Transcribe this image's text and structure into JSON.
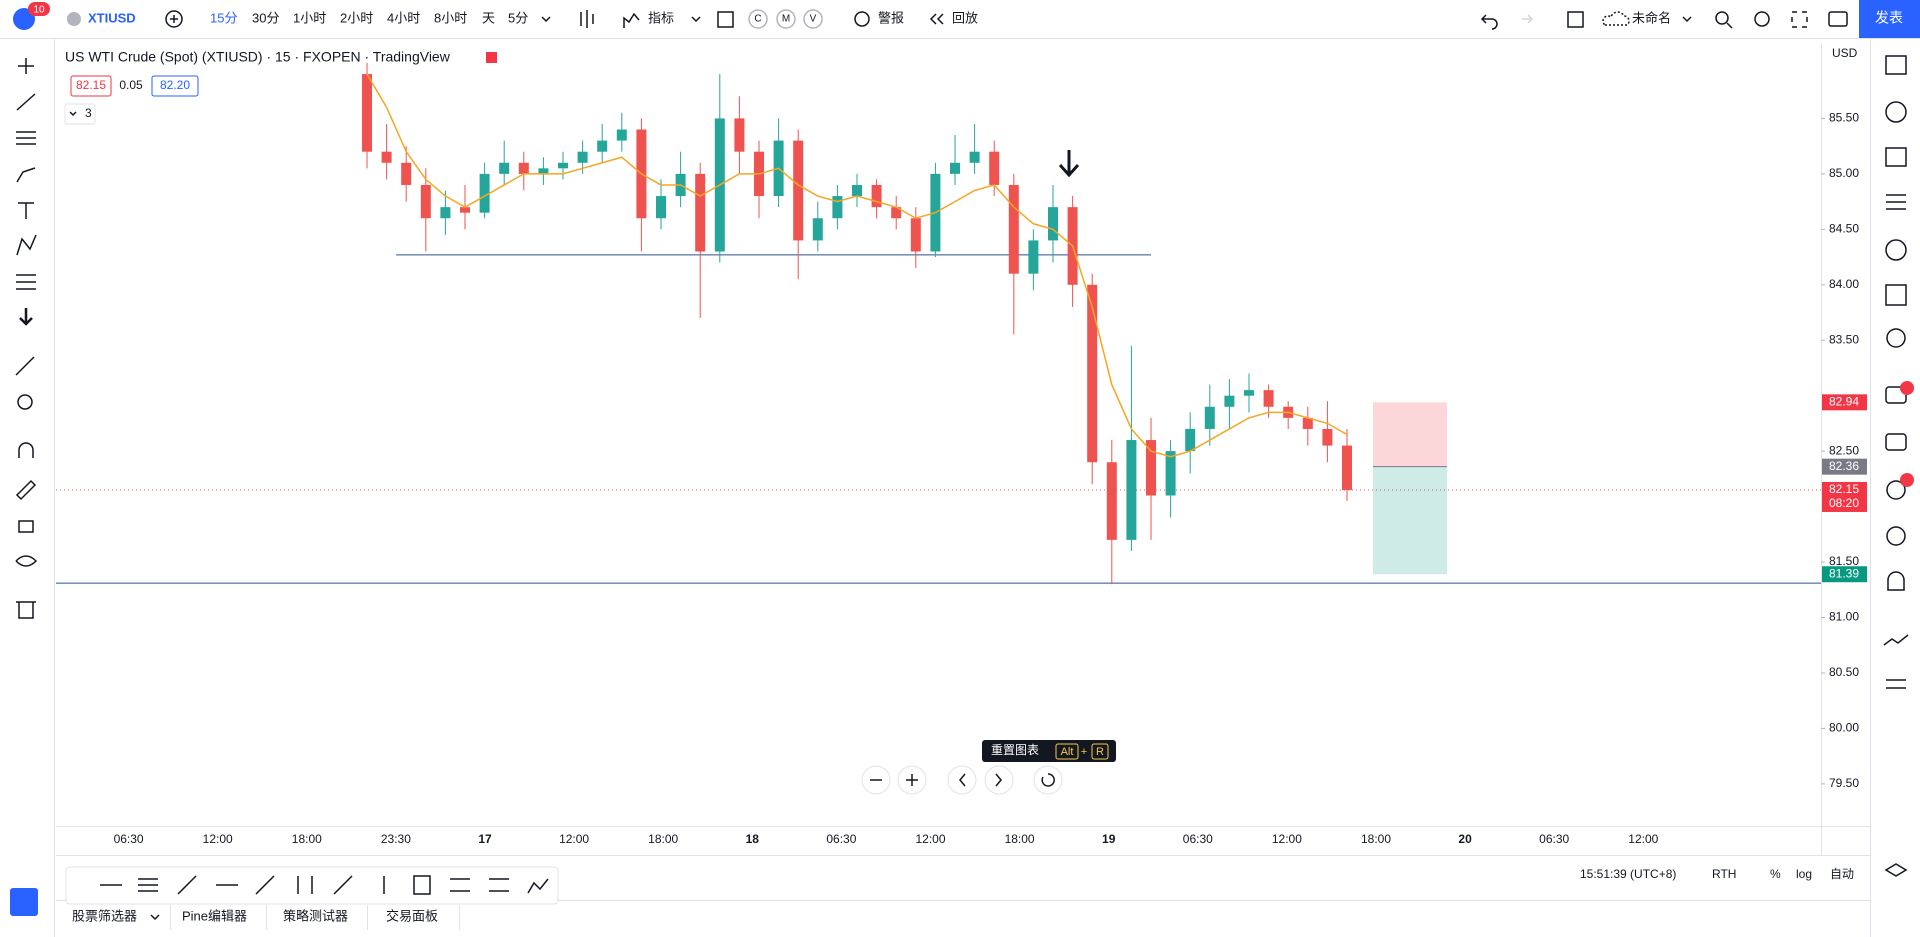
{
  "topbar": {
    "badge": "10",
    "symbol": "XTIUSD",
    "intervals": [
      "15分",
      "30分",
      "1小时",
      "2小时",
      "4小时",
      "8小时",
      "天",
      "5分"
    ],
    "indicators": "指标",
    "cmv": [
      "C",
      "M",
      "V"
    ],
    "alert": "警报",
    "replay": "回放",
    "layout_name": "未命名",
    "publish": "发表"
  },
  "legend": {
    "title": "US WTI Crude (Spot) (XTIUSD) · 15 · FXOPEN · TradingView",
    "bid": "82.15",
    "spread": "0.05",
    "ask": "82.20",
    "indicators_count": "3"
  },
  "chart_data": {
    "type": "candlestick",
    "currency": "USD",
    "up_color": "#26a69a",
    "down_color": "#ef5350",
    "ma_color": "#f5a623",
    "candles": [
      [
        85.9,
        86.0,
        85.05,
        85.2
      ],
      [
        85.2,
        85.45,
        84.95,
        85.1
      ],
      [
        85.1,
        85.25,
        84.75,
        84.9
      ],
      [
        84.9,
        85.05,
        84.3,
        84.6
      ],
      [
        84.6,
        84.85,
        84.45,
        84.7
      ],
      [
        84.7,
        84.9,
        84.5,
        84.65
      ],
      [
        84.65,
        85.1,
        84.6,
        85.0
      ],
      [
        85.0,
        85.3,
        84.9,
        85.1
      ],
      [
        85.1,
        85.2,
        84.85,
        85.0
      ],
      [
        85.0,
        85.15,
        84.9,
        85.05
      ],
      [
        85.05,
        85.2,
        84.95,
        85.1
      ],
      [
        85.1,
        85.3,
        85.0,
        85.2
      ],
      [
        85.2,
        85.45,
        85.1,
        85.3
      ],
      [
        85.3,
        85.55,
        85.2,
        85.4
      ],
      [
        85.4,
        85.5,
        84.3,
        84.6
      ],
      [
        84.6,
        84.95,
        84.5,
        84.8
      ],
      [
        84.8,
        85.2,
        84.7,
        85.0
      ],
      [
        85.0,
        85.1,
        83.7,
        84.3
      ],
      [
        84.3,
        85.9,
        84.2,
        85.5
      ],
      [
        85.5,
        85.7,
        85.0,
        85.2
      ],
      [
        85.2,
        85.3,
        84.6,
        84.8
      ],
      [
        84.8,
        85.5,
        84.7,
        85.3
      ],
      [
        85.3,
        85.4,
        84.05,
        84.4
      ],
      [
        84.4,
        84.75,
        84.3,
        84.6
      ],
      [
        84.6,
        84.9,
        84.5,
        84.8
      ],
      [
        84.8,
        85.0,
        84.7,
        84.9
      ],
      [
        84.9,
        84.95,
        84.6,
        84.7
      ],
      [
        84.7,
        84.8,
        84.5,
        84.6
      ],
      [
        84.6,
        84.7,
        84.15,
        84.3
      ],
      [
        84.3,
        85.1,
        84.25,
        85.0
      ],
      [
        85.0,
        85.35,
        84.9,
        85.1
      ],
      [
        85.1,
        85.45,
        85.0,
        85.2
      ],
      [
        85.2,
        85.3,
        84.8,
        84.9
      ],
      [
        84.9,
        85.0,
        83.55,
        84.1
      ],
      [
        84.1,
        84.5,
        83.95,
        84.4
      ],
      [
        84.4,
        84.9,
        84.2,
        84.7
      ],
      [
        84.7,
        84.8,
        83.8,
        84.0
      ],
      [
        84.0,
        84.1,
        82.2,
        82.4
      ],
      [
        82.4,
        82.6,
        81.3,
        81.7
      ],
      [
        81.7,
        83.45,
        81.6,
        82.6
      ],
      [
        82.6,
        82.8,
        81.7,
        82.1
      ],
      [
        82.1,
        82.6,
        81.9,
        82.5
      ],
      [
        82.5,
        82.85,
        82.3,
        82.7
      ],
      [
        82.7,
        83.1,
        82.55,
        82.9
      ],
      [
        82.9,
        83.15,
        82.7,
        83.0
      ],
      [
        83.0,
        83.2,
        82.85,
        83.05
      ],
      [
        83.05,
        83.1,
        82.8,
        82.9
      ],
      [
        82.9,
        82.95,
        82.7,
        82.8
      ],
      [
        82.8,
        82.9,
        82.55,
        82.7
      ],
      [
        82.7,
        82.95,
        82.4,
        82.55
      ],
      [
        82.55,
        82.7,
        82.05,
        82.15
      ]
    ],
    "ma": [
      85.9,
      85.6,
      85.2,
      84.95,
      84.8,
      84.7,
      84.8,
      84.9,
      85.0,
      85.0,
      85.0,
      85.05,
      85.1,
      85.15,
      85.0,
      84.9,
      84.9,
      84.8,
      84.9,
      85.0,
      85.0,
      85.05,
      84.9,
      84.8,
      84.75,
      84.8,
      84.75,
      84.7,
      84.6,
      84.65,
      84.75,
      84.85,
      84.9,
      84.7,
      84.55,
      84.5,
      84.35,
      83.8,
      83.1,
      82.7,
      82.5,
      82.45,
      82.5,
      82.6,
      82.7,
      82.8,
      82.85,
      82.85,
      82.8,
      82.75,
      82.65
    ],
    "ylim": [
      79.12,
      86.18
    ],
    "yticks": [
      {
        "value": 85.5,
        "label": "85.50"
      },
      {
        "value": 85,
        "label": "85.00"
      },
      {
        "value": 84.5,
        "label": "84.50"
      },
      {
        "value": 84,
        "label": "84.00"
      },
      {
        "value": 83.5,
        "label": "83.50"
      },
      {
        "value": 82.5,
        "label": "82.50"
      },
      {
        "value": 81.5,
        "label": "81.50"
      },
      {
        "value": 81,
        "label": "81.00"
      },
      {
        "value": 80.5,
        "label": "80.50"
      },
      {
        "value": 80,
        "label": "80.00"
      },
      {
        "value": 79.5,
        "label": "79.50"
      }
    ],
    "time_labels": [
      "06:30",
      "12:00",
      "18:00",
      "23:30",
      "17",
      "12:00",
      "18:00",
      "18",
      "06:30",
      "12:00",
      "18:00",
      "19",
      "06:30",
      "12:00",
      "18:00",
      "20",
      "06:30",
      "12:00"
    ],
    "levels": {
      "support_line": 84.27,
      "low_line": 81.31
    },
    "position": {
      "stop": 82.94,
      "entry": 82.36,
      "target": 81.39
    },
    "last_price": 82.15,
    "countdown": "08:20"
  },
  "reset_tooltip": {
    "label": "重置图表",
    "keys": [
      "Alt",
      "+",
      "R"
    ]
  },
  "status": {
    "time": "15:51:39 (UTC+8)",
    "rth": "RTH",
    "percent": "%",
    "log": "log",
    "auto": "自动"
  },
  "bottom_tabs": [
    "股票筛选器",
    "Pine编辑器",
    "策略测试器",
    "交易面板"
  ]
}
